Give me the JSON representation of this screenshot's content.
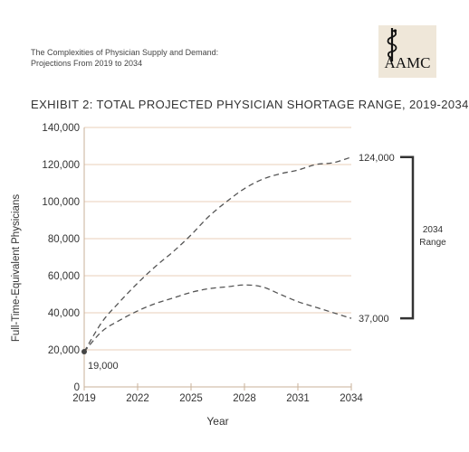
{
  "header": {
    "report_title_line1": "The Complexities of Physician Supply and Demand:",
    "report_title_line2": "Projections From 2019 to 2034",
    "logo_text": "AAMC"
  },
  "colors": {
    "grid": "#e8cfb8",
    "axis": "#c9b29a",
    "series": "#555555",
    "bracket": "#333333",
    "logo_bg": "#efe7d9"
  },
  "chart_data": {
    "type": "line",
    "title": "EXHIBIT 2: TOTAL PROJECTED PHYSICIAN SHORTAGE RANGE, 2019-2034",
    "xlabel": "Year",
    "ylabel": "Full-Time-Equivalent Physicians",
    "xlim": [
      2019,
      2034
    ],
    "ylim": [
      0,
      140000
    ],
    "xticks": [
      2019,
      2022,
      2025,
      2028,
      2031,
      2034
    ],
    "yticks": [
      0,
      20000,
      40000,
      60000,
      80000,
      100000,
      120000,
      140000
    ],
    "ytick_labels": [
      "0",
      "20,000",
      "40,000",
      "60,000",
      "80,000",
      "100,000",
      "120,000",
      "140,000"
    ],
    "grid": "horizontal",
    "series": [
      {
        "style": "dashed",
        "x": [
          2019,
          2020,
          2021,
          2022,
          2023,
          2024,
          2025,
          2026,
          2027,
          2028,
          2029,
          2030,
          2031,
          2032,
          2033,
          2034
        ],
        "values": [
          19000,
          35000,
          46000,
          56000,
          65000,
          73000,
          82000,
          92000,
          100000,
          107000,
          112000,
          115000,
          117000,
          120000,
          121000,
          124000
        ]
      },
      {
        "style": "dashed",
        "x": [
          2019,
          2020,
          2021,
          2022,
          2023,
          2024,
          2025,
          2026,
          2027,
          2028,
          2029,
          2030,
          2031,
          2032,
          2033,
          2034
        ],
        "values": [
          19000,
          30000,
          36000,
          41000,
          45000,
          48000,
          51000,
          53000,
          54000,
          55000,
          54000,
          50000,
          46000,
          43000,
          40000,
          37000
        ]
      }
    ],
    "annotations": [
      {
        "text": "19,000",
        "x": 2019,
        "y": 19000
      },
      {
        "text": "124,000",
        "x": 2034,
        "y": 124000
      },
      {
        "text": "37,000",
        "x": 2034,
        "y": 37000
      }
    ],
    "range_label_line1": "2034",
    "range_label_line2": "Range"
  }
}
